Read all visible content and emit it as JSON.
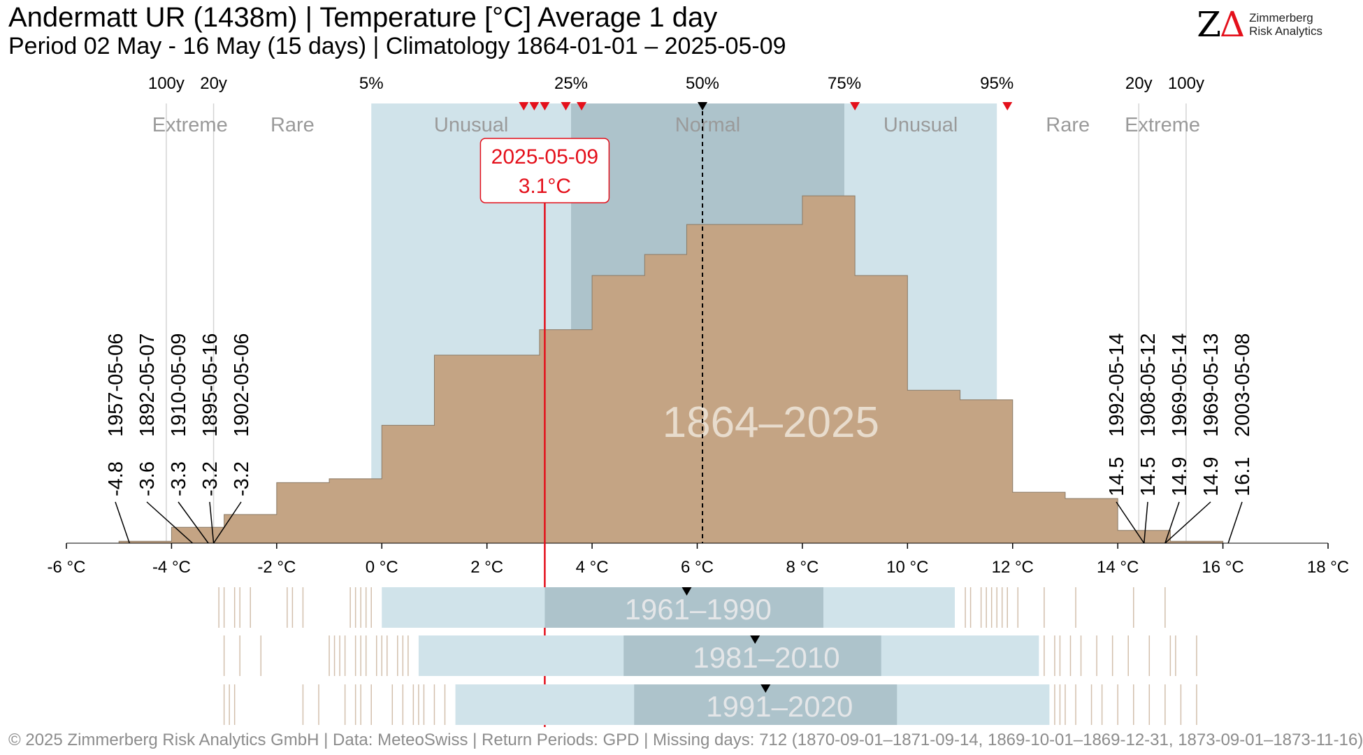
{
  "header": {
    "title": "Andermatt  UR (1438m) | Temperature [°C] Average 1 day",
    "subtitle": "Period 02 May - 16 May (15 days) | Climatology 1864-01-01 – 2025-05-09"
  },
  "logo": {
    "line1": "Zimmerberg",
    "line2": "Risk Analytics",
    "mark_z": "Z",
    "mark_delta": "Δ"
  },
  "footer": {
    "text": "© 2025 Zimmerberg Risk Analytics GmbH | Data: MeteoSwiss | Return Periods: GPD | Missing days: 712 (1870-09-01–1871-09-14, 1869-10-01–1869-12-31, 1873-09-01–1873-11-16)"
  },
  "colors": {
    "histogram": "#c4a484",
    "unusual_band": "#d0e3ea",
    "normal_band": "#adc3cb",
    "current_line": "#e4101b",
    "median_marker": "#000000",
    "period_label": "#e4e6e8",
    "hist_label": "#e8dccd"
  },
  "chart_data": {
    "type": "histogram",
    "unit": "°C",
    "xlim": [
      -6,
      18
    ],
    "x_ticks": [
      -6,
      -4,
      -2,
      0,
      2,
      4,
      6,
      8,
      10,
      12,
      14,
      16,
      18
    ],
    "x_tick_labels": [
      "-6 °C",
      "-4 °C",
      "-2 °C",
      "0 °C",
      "2 °C",
      "4 °C",
      "6 °C",
      "8 °C",
      "10 °C",
      "12 °C",
      "14 °C",
      "16 °C",
      "18 °C"
    ],
    "histogram_label": "1864–2025",
    "bins": [
      {
        "x0": -5,
        "x1": -4,
        "count": 0.3
      },
      {
        "x0": -4,
        "x1": -3,
        "count": 2.5
      },
      {
        "x0": -3,
        "x1": -2,
        "count": 4.5
      },
      {
        "x0": -2,
        "x1": -1,
        "count": 9.5
      },
      {
        "x0": -1,
        "x1": 0,
        "count": 10.1
      },
      {
        "x0": 0,
        "x1": 1,
        "count": 18.5
      },
      {
        "x0": 1,
        "x1": 2,
        "count": 29.5
      },
      {
        "x0": 2,
        "x1": 3,
        "count": 29.5
      },
      {
        "x0": 3,
        "x1": 4,
        "count": 33.5
      },
      {
        "x0": 4,
        "x1": 5,
        "count": 42.0
      },
      {
        "x0": 5,
        "x1": 5.8,
        "count": 45.3
      },
      {
        "x0": 5.8,
        "x1": 8,
        "count": 50.0
      },
      {
        "x0": 8,
        "x1": 9,
        "count": 54.5
      },
      {
        "x0": 9,
        "x1": 10,
        "count": 42.0
      },
      {
        "x0": 10,
        "x1": 11,
        "count": 24.0
      },
      {
        "x0": 11,
        "x1": 12,
        "count": 22.5
      },
      {
        "x0": 12,
        "x1": 13,
        "count": 8.0
      },
      {
        "x0": 13,
        "x1": 14,
        "count": 7.0
      },
      {
        "x0": 14,
        "x1": 15,
        "count": 2.0
      },
      {
        "x0": 15,
        "x1": 16,
        "count": 0.3
      }
    ],
    "ylim": [
      0,
      60
    ],
    "percentiles": [
      {
        "label": "5%",
        "value": -0.2
      },
      {
        "label": "25%",
        "value": 3.6
      },
      {
        "label": "50%",
        "value": 6.1
      },
      {
        "label": "75%",
        "value": 8.8
      },
      {
        "label": "95%",
        "value": 11.7
      }
    ],
    "return_periods": [
      {
        "label": "100y",
        "value": -4.1
      },
      {
        "label": "20y",
        "value": -3.2
      },
      {
        "label": "20y",
        "value": 14.4
      },
      {
        "label": "100y",
        "value": 15.3
      }
    ],
    "zones": [
      "Extreme",
      "Rare",
      "Unusual",
      "Normal",
      "Unusual",
      "Rare",
      "Extreme"
    ],
    "current": {
      "date": "2025-05-09",
      "value": 3.1,
      "value_label": "3.1°C"
    },
    "median": 6.1,
    "recent_markers_cold": [
      2.7,
      2.9,
      3.1,
      3.5,
      3.8
    ],
    "recent_markers_warm": [
      9.0,
      11.9
    ],
    "extremes_low": [
      {
        "date": "1957-05-06",
        "value": -4.8
      },
      {
        "date": "1892-05-07",
        "value": -3.6
      },
      {
        "date": "1910-05-09",
        "value": -3.3
      },
      {
        "date": "1895-05-16",
        "value": -3.2
      },
      {
        "date": "1902-05-06",
        "value": -3.2
      }
    ],
    "extremes_high": [
      {
        "date": "1992-05-14",
        "value": 14.5
      },
      {
        "date": "1908-05-12",
        "value": 14.5
      },
      {
        "date": "1969-05-14",
        "value": 14.9
      },
      {
        "date": "1969-05-13",
        "value": 14.9
      },
      {
        "date": "2003-05-08",
        "value": 16.1
      }
    ],
    "extreme_value_labels_low": [
      "-4.8",
      "-3.6",
      "-3.3",
      "-3.2",
      "-3.2"
    ],
    "extreme_value_labels_high": [
      "14.5",
      "14.5",
      "14.9",
      "14.9",
      "16.1"
    ],
    "reference_periods": [
      {
        "label": "1961–1990",
        "p5": 0.0,
        "p25": 3.1,
        "p75": 8.4,
        "p95": 10.9,
        "median": 5.8,
        "ticks": [
          -3.1,
          -3.0,
          -2.8,
          -2.7,
          -2.5,
          -1.8,
          -1.7,
          -1.5,
          -0.6,
          -0.5,
          -0.4,
          -0.3,
          -0.2,
          11.1,
          11.2,
          11.4,
          11.5,
          11.6,
          11.7,
          11.8,
          11.9,
          12.1,
          12.6,
          13.2,
          14.3,
          14.9
        ]
      },
      {
        "label": "1981–2010",
        "p5": 0.7,
        "p25": 4.6,
        "p75": 9.5,
        "p95": 12.5,
        "median": 7.1,
        "ticks": [
          -3.0,
          -2.7,
          -2.3,
          -1.0,
          -0.9,
          -0.8,
          -0.7,
          -0.5,
          -0.4,
          -0.3,
          -0.1,
          0.0,
          0.1,
          0.3,
          0.4,
          0.5,
          12.6,
          12.8,
          12.9,
          13.1,
          13.3,
          13.6,
          13.9,
          14.2,
          14.6,
          15.0,
          15.1,
          15.5
        ]
      },
      {
        "label": "1991–2020",
        "p5": 1.4,
        "p25": 4.8,
        "p75": 9.8,
        "p95": 12.7,
        "median": 7.3,
        "ticks": [
          -3.0,
          -2.9,
          -2.8,
          -1.5,
          -1.2,
          -0.7,
          -0.5,
          -0.4,
          -0.2,
          0.2,
          0.4,
          0.6,
          0.7,
          0.8,
          1.0,
          1.2,
          12.8,
          12.9,
          13.0,
          13.2,
          13.5,
          13.7,
          14.0,
          14.3,
          14.6,
          14.9,
          15.2,
          15.5
        ]
      }
    ]
  }
}
